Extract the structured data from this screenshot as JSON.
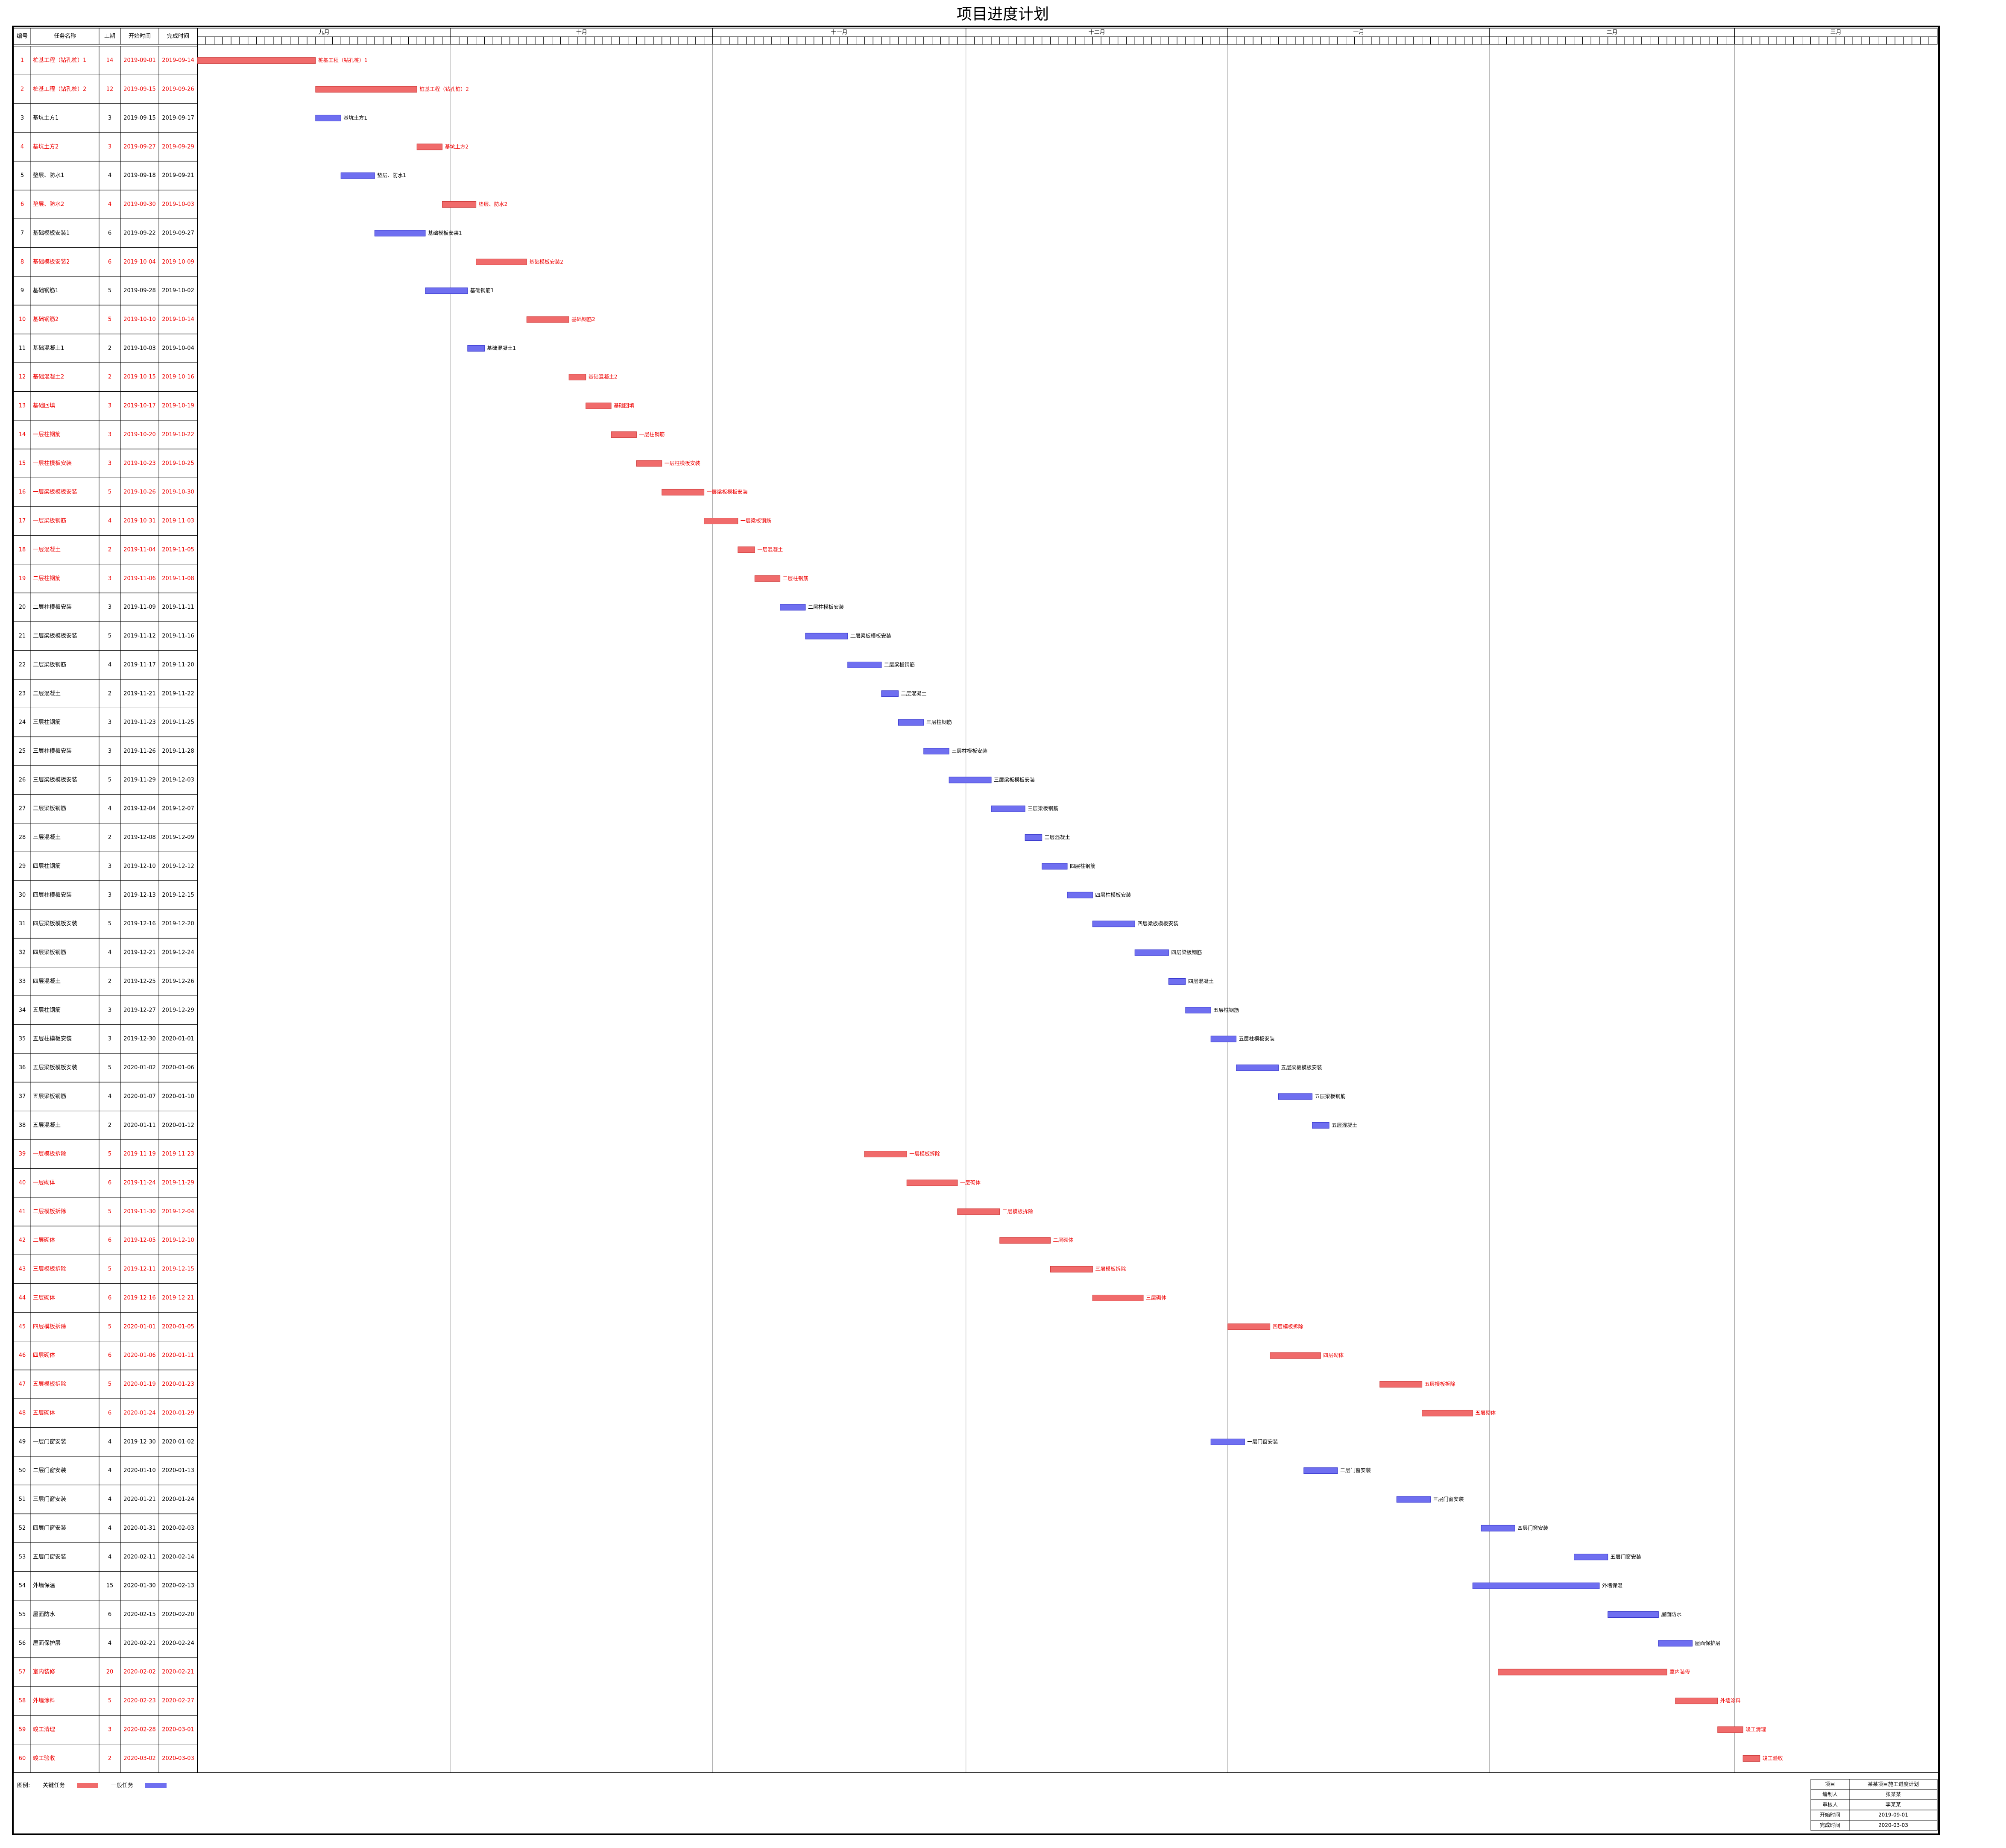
{
  "chart_data": {
    "type": "gantt",
    "title": "项目进度计划",
    "columns": [
      "编号",
      "任务名称",
      "工期",
      "开始时间",
      "完成时间"
    ],
    "timeline_start": "2019-09-01",
    "months": [
      {
        "name": "九月",
        "days": 30
      },
      {
        "name": "十月",
        "days": 31
      },
      {
        "name": "十一月",
        "days": 30
      },
      {
        "name": "十二月",
        "days": 31
      },
      {
        "name": "一月",
        "days": 31
      },
      {
        "name": "二月",
        "days": 29
      },
      {
        "name": "三月",
        "days": 24
      }
    ],
    "critical_color": "#f06b6b",
    "normal_color": "#6f6ff0",
    "tasks": [
      {
        "id": 1,
        "name": "桩基工程（钻孔桩）1",
        "duration": 14,
        "start": "2019-09-01",
        "finish": "2019-09-14",
        "critical": true
      },
      {
        "id": 2,
        "name": "桩基工程（钻孔桩）2",
        "duration": 12,
        "start": "2019-09-15",
        "finish": "2019-09-26",
        "critical": true
      },
      {
        "id": 3,
        "name": "基坑土方1",
        "duration": 3,
        "start": "2019-09-15",
        "finish": "2019-09-17",
        "critical": false
      },
      {
        "id": 4,
        "name": "基坑土方2",
        "duration": 3,
        "start": "2019-09-27",
        "finish": "2019-09-29",
        "critical": true
      },
      {
        "id": 5,
        "name": "垫层、防水1",
        "duration": 4,
        "start": "2019-09-18",
        "finish": "2019-09-21",
        "critical": false
      },
      {
        "id": 6,
        "name": "垫层、防水2",
        "duration": 4,
        "start": "2019-09-30",
        "finish": "2019-10-03",
        "critical": true
      },
      {
        "id": 7,
        "name": "基础模板安装1",
        "duration": 6,
        "start": "2019-09-22",
        "finish": "2019-09-27",
        "critical": false
      },
      {
        "id": 8,
        "name": "基础模板安装2",
        "duration": 6,
        "start": "2019-10-04",
        "finish": "2019-10-09",
        "critical": true
      },
      {
        "id": 9,
        "name": "基础钢筋1",
        "duration": 5,
        "start": "2019-09-28",
        "finish": "2019-10-02",
        "critical": false
      },
      {
        "id": 10,
        "name": "基础钢筋2",
        "duration": 5,
        "start": "2019-10-10",
        "finish": "2019-10-14",
        "critical": true
      },
      {
        "id": 11,
        "name": "基础混凝土1",
        "duration": 2,
        "start": "2019-10-03",
        "finish": "2019-10-04",
        "critical": false
      },
      {
        "id": 12,
        "name": "基础混凝土2",
        "duration": 2,
        "start": "2019-10-15",
        "finish": "2019-10-16",
        "critical": true
      },
      {
        "id": 13,
        "name": "基础回填",
        "duration": 3,
        "start": "2019-10-17",
        "finish": "2019-10-19",
        "critical": true
      },
      {
        "id": 14,
        "name": "一层柱钢筋",
        "duration": 3,
        "start": "2019-10-20",
        "finish": "2019-10-22",
        "critical": true
      },
      {
        "id": 15,
        "name": "一层柱模板安装",
        "duration": 3,
        "start": "2019-10-23",
        "finish": "2019-10-25",
        "critical": true
      },
      {
        "id": 16,
        "name": "一层梁板模板安装",
        "duration": 5,
        "start": "2019-10-26",
        "finish": "2019-10-30",
        "critical": true
      },
      {
        "id": 17,
        "name": "一层梁板钢筋",
        "duration": 4,
        "start": "2019-10-31",
        "finish": "2019-11-03",
        "critical": true
      },
      {
        "id": 18,
        "name": "一层混凝土",
        "duration": 2,
        "start": "2019-11-04",
        "finish": "2019-11-05",
        "critical": true
      },
      {
        "id": 19,
        "name": "二层柱钢筋",
        "duration": 3,
        "start": "2019-11-06",
        "finish": "2019-11-08",
        "critical": true
      },
      {
        "id": 20,
        "name": "二层柱模板安装",
        "duration": 3,
        "start": "2019-11-09",
        "finish": "2019-11-11",
        "critical": false
      },
      {
        "id": 21,
        "name": "二层梁板模板安装",
        "duration": 5,
        "start": "2019-11-12",
        "finish": "2019-11-16",
        "critical": false
      },
      {
        "id": 22,
        "name": "二层梁板钢筋",
        "duration": 4,
        "start": "2019-11-17",
        "finish": "2019-11-20",
        "critical": false
      },
      {
        "id": 23,
        "name": "二层混凝土",
        "duration": 2,
        "start": "2019-11-21",
        "finish": "2019-11-22",
        "critical": false
      },
      {
        "id": 24,
        "name": "三层柱钢筋",
        "duration": 3,
        "start": "2019-11-23",
        "finish": "2019-11-25",
        "critical": false
      },
      {
        "id": 25,
        "name": "三层柱模板安装",
        "duration": 3,
        "start": "2019-11-26",
        "finish": "2019-11-28",
        "critical": false
      },
      {
        "id": 26,
        "name": "三层梁板模板安装",
        "duration": 5,
        "start": "2019-11-29",
        "finish": "2019-12-03",
        "critical": false
      },
      {
        "id": 27,
        "name": "三层梁板钢筋",
        "duration": 4,
        "start": "2019-12-04",
        "finish": "2019-12-07",
        "critical": false
      },
      {
        "id": 28,
        "name": "三层混凝土",
        "duration": 2,
        "start": "2019-12-08",
        "finish": "2019-12-09",
        "critical": false
      },
      {
        "id": 29,
        "name": "四层柱钢筋",
        "duration": 3,
        "start": "2019-12-10",
        "finish": "2019-12-12",
        "critical": false
      },
      {
        "id": 30,
        "name": "四层柱模板安装",
        "duration": 3,
        "start": "2019-12-13",
        "finish": "2019-12-15",
        "critical": false
      },
      {
        "id": 31,
        "name": "四层梁板模板安装",
        "duration": 5,
        "start": "2019-12-16",
        "finish": "2019-12-20",
        "critical": false
      },
      {
        "id": 32,
        "name": "四层梁板钢筋",
        "duration": 4,
        "start": "2019-12-21",
        "finish": "2019-12-24",
        "critical": false
      },
      {
        "id": 33,
        "name": "四层混凝土",
        "duration": 2,
        "start": "2019-12-25",
        "finish": "2019-12-26",
        "critical": false
      },
      {
        "id": 34,
        "name": "五层柱钢筋",
        "duration": 3,
        "start": "2019-12-27",
        "finish": "2019-12-29",
        "critical": false
      },
      {
        "id": 35,
        "name": "五层柱模板安装",
        "duration": 3,
        "start": "2019-12-30",
        "finish": "2020-01-01",
        "critical": false
      },
      {
        "id": 36,
        "name": "五层梁板模板安装",
        "duration": 5,
        "start": "2020-01-02",
        "finish": "2020-01-06",
        "critical": false
      },
      {
        "id": 37,
        "name": "五层梁板钢筋",
        "duration": 4,
        "start": "2020-01-07",
        "finish": "2020-01-10",
        "critical": false
      },
      {
        "id": 38,
        "name": "五层混凝土",
        "duration": 2,
        "start": "2020-01-11",
        "finish": "2020-01-12",
        "critical": false
      },
      {
        "id": 39,
        "name": "一层模板拆除",
        "duration": 5,
        "start": "2019-11-19",
        "finish": "2019-11-23",
        "critical": true
      },
      {
        "id": 40,
        "name": "一层砌体",
        "duration": 6,
        "start": "2019-11-24",
        "finish": "2019-11-29",
        "critical": true
      },
      {
        "id": 41,
        "name": "二层模板拆除",
        "duration": 5,
        "start": "2019-11-30",
        "finish": "2019-12-04",
        "critical": true
      },
      {
        "id": 42,
        "name": "二层砌体",
        "duration": 6,
        "start": "2019-12-05",
        "finish": "2019-12-10",
        "critical": true
      },
      {
        "id": 43,
        "name": "三层模板拆除",
        "duration": 5,
        "start": "2019-12-11",
        "finish": "2019-12-15",
        "critical": true
      },
      {
        "id": 44,
        "name": "三层砌体",
        "duration": 6,
        "start": "2019-12-16",
        "finish": "2019-12-21",
        "critical": true
      },
      {
        "id": 45,
        "name": "四层模板拆除",
        "duration": 5,
        "start": "2020-01-01",
        "finish": "2020-01-05",
        "critical": true
      },
      {
        "id": 46,
        "name": "四层砌体",
        "duration": 6,
        "start": "2020-01-06",
        "finish": "2020-01-11",
        "critical": true
      },
      {
        "id": 47,
        "name": "五层模板拆除",
        "duration": 5,
        "start": "2020-01-19",
        "finish": "2020-01-23",
        "critical": true
      },
      {
        "id": 48,
        "name": "五层砌体",
        "duration": 6,
        "start": "2020-01-24",
        "finish": "2020-01-29",
        "critical": true
      },
      {
        "id": 49,
        "name": "一层门窗安装",
        "duration": 4,
        "start": "2019-12-30",
        "finish": "2020-01-02",
        "critical": false
      },
      {
        "id": 50,
        "name": "二层门窗安装",
        "duration": 4,
        "start": "2020-01-10",
        "finish": "2020-01-13",
        "critical": false
      },
      {
        "id": 51,
        "name": "三层门窗安装",
        "duration": 4,
        "start": "2020-01-21",
        "finish": "2020-01-24",
        "critical": false
      },
      {
        "id": 52,
        "name": "四层门窗安装",
        "duration": 4,
        "start": "2020-01-31",
        "finish": "2020-02-03",
        "critical": false
      },
      {
        "id": 53,
        "name": "五层门窗安装",
        "duration": 4,
        "start": "2020-02-11",
        "finish": "2020-02-14",
        "critical": false
      },
      {
        "id": 54,
        "name": "外墙保温",
        "duration": 15,
        "start": "2020-01-30",
        "finish": "2020-02-13",
        "critical": false
      },
      {
        "id": 55,
        "name": "屋面防水",
        "duration": 6,
        "start": "2020-02-15",
        "finish": "2020-02-20",
        "critical": false
      },
      {
        "id": 56,
        "name": "屋面保护层",
        "duration": 4,
        "start": "2020-02-21",
        "finish": "2020-02-24",
        "critical": false
      },
      {
        "id": 57,
        "name": "室内装修",
        "duration": 20,
        "start": "2020-02-02",
        "finish": "2020-02-21",
        "critical": true
      },
      {
        "id": 58,
        "name": "外墙涂料",
        "duration": 5,
        "start": "2020-02-23",
        "finish": "2020-02-27",
        "critical": true
      },
      {
        "id": 59,
        "name": "竣工清理",
        "duration": 3,
        "start": "2020-02-28",
        "finish": "2020-03-01",
        "critical": true
      },
      {
        "id": 60,
        "name": "竣工验收",
        "duration": 2,
        "start": "2020-03-02",
        "finish": "2020-03-03",
        "critical": true
      }
    ],
    "legend": {
      "label": "图例:",
      "critical": "关键任务",
      "normal": "一般任务"
    },
    "title_block": [
      [
        "项目",
        "某某项目施工进度计划"
      ],
      [
        "编制人",
        "张某某"
      ],
      [
        "审核人",
        "李某某"
      ],
      [
        "开始时间",
        "2019-09-01"
      ],
      [
        "完成时间",
        "2020-03-03"
      ]
    ]
  }
}
